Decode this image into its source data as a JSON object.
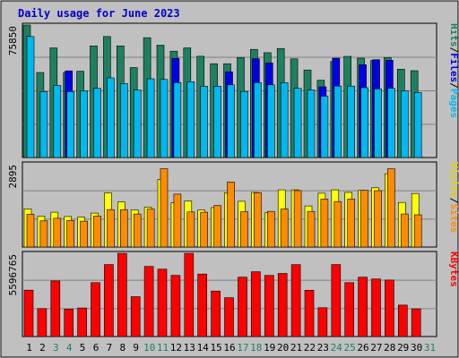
{
  "title": "Daily usage for June 2023",
  "colors": {
    "background": "#c0c0c0",
    "title": "#0000cc",
    "hits": "#1e8060",
    "files": "#0000e6",
    "pages": "#00b8f0",
    "visits": "#ffff00",
    "sites": "#ff8c00",
    "kbytes": "#ff0000",
    "weekday_label": "#000000",
    "weekend_label": "#1e8060"
  },
  "legends": {
    "top": [
      {
        "text": "Hits",
        "color": "#1e8060"
      },
      {
        "text": "/",
        "color": "#000000"
      },
      {
        "text": "Files",
        "color": "#0000e6"
      },
      {
        "text": "/",
        "color": "#000000"
      },
      {
        "text": "Pages",
        "color": "#00b8f0"
      }
    ],
    "middle": [
      {
        "text": "Visits",
        "color": "#e0d000"
      },
      {
        "text": "/",
        "color": "#000000"
      },
      {
        "text": "Sites",
        "color": "#ff8c00"
      }
    ],
    "bottom": [
      {
        "text": "KBytes",
        "color": "#ff0000"
      }
    ]
  },
  "chart_data": [
    {
      "type": "bar",
      "title": "Daily usage for June 2023",
      "panel": "top",
      "ymax_label": "75850",
      "ylim": [
        0,
        75850
      ],
      "grid": true,
      "categories": [
        "1",
        "2",
        "3",
        "4",
        "5",
        "6",
        "7",
        "8",
        "9",
        "10",
        "11",
        "12",
        "13",
        "14",
        "15",
        "16",
        "17",
        "18",
        "19",
        "20",
        "21",
        "22",
        "23",
        "24",
        "25",
        "26",
        "27",
        "28",
        "29",
        "30",
        "31"
      ],
      "weekend_days": [
        "3",
        "4",
        "10",
        "11",
        "17",
        "18",
        "24",
        "25",
        "31"
      ],
      "series": [
        {
          "name": "Hits",
          "color": "#1e8060",
          "values": [
            75850,
            48700,
            62800,
            48700,
            49400,
            63900,
            69300,
            63900,
            51500,
            68600,
            64300,
            60900,
            62800,
            58000,
            53700,
            53700,
            57300,
            61900,
            60000,
            62400,
            56500,
            50100,
            44300,
            55000,
            57900,
            56900,
            55600,
            57300,
            50600,
            49700,
            0
          ]
        },
        {
          "name": "Files",
          "color": "#0000e6",
          "values": [
            0,
            0,
            0,
            49600,
            0,
            0,
            0,
            0,
            0,
            0,
            0,
            56800,
            0,
            0,
            0,
            49100,
            0,
            56600,
            54100,
            0,
            0,
            0,
            40500,
            56900,
            0,
            53100,
            56000,
            55700,
            0,
            0,
            0
          ]
        },
        {
          "name": "Pages",
          "color": "#00b8f0",
          "values": [
            69300,
            37700,
            41200,
            37700,
            38200,
            39600,
            45600,
            42400,
            38600,
            45100,
            44700,
            42900,
            43400,
            40800,
            40800,
            41600,
            37800,
            42900,
            41600,
            42900,
            39600,
            38700,
            35100,
            40900,
            40900,
            40000,
            39300,
            39600,
            38200,
            37200,
            0
          ]
        }
      ]
    },
    {
      "type": "bar",
      "panel": "middle",
      "ymax_label": "2895",
      "ylim": [
        0,
        2895
      ],
      "grid": true,
      "categories": [
        "1",
        "2",
        "3",
        "4",
        "5",
        "6",
        "7",
        "8",
        "9",
        "10",
        "11",
        "12",
        "13",
        "14",
        "15",
        "16",
        "17",
        "18",
        "19",
        "20",
        "21",
        "22",
        "23",
        "24",
        "25",
        "26",
        "27",
        "28",
        "29",
        "30",
        "31"
      ],
      "series": [
        {
          "name": "Visits",
          "color": "#ffff00",
          "values": [
            1330,
            1070,
            1210,
            1060,
            1040,
            1180,
            1880,
            1570,
            1290,
            1390,
            2350,
            1540,
            1600,
            1290,
            1370,
            1890,
            1590,
            1900,
            1190,
            1990,
            1990,
            1430,
            1870,
            1990,
            1900,
            1970,
            2060,
            2550,
            1550,
            1860,
            0
          ]
        },
        {
          "name": "Sites",
          "color": "#ff8c00",
          "values": [
            1140,
            910,
            1000,
            920,
            900,
            1080,
            1300,
            1300,
            1150,
            1320,
            2720,
            1840,
            1220,
            1210,
            1440,
            2260,
            1230,
            1890,
            1240,
            1320,
            1960,
            1240,
            1670,
            1580,
            1670,
            1970,
            1960,
            2720,
            1150,
            1120,
            0
          ]
        }
      ]
    },
    {
      "type": "bar",
      "panel": "bottom",
      "ymax_label": "5596765",
      "ylim": [
        0,
        5596765
      ],
      "grid": true,
      "categories": [
        "1",
        "2",
        "3",
        "4",
        "5",
        "6",
        "7",
        "8",
        "9",
        "10",
        "11",
        "12",
        "13",
        "14",
        "15",
        "16",
        "17",
        "18",
        "19",
        "20",
        "21",
        "22",
        "23",
        "24",
        "25",
        "26",
        "27",
        "28",
        "29",
        "30",
        "31"
      ],
      "series": [
        {
          "name": "KBytes",
          "color": "#ff0000",
          "values": [
            3120000,
            1880000,
            3740000,
            1840000,
            1920000,
            3620000,
            4840000,
            5590000,
            2680000,
            4710000,
            4530000,
            4110000,
            5590000,
            4200000,
            3060000,
            2610000,
            3990000,
            4360000,
            4110000,
            4240000,
            4830000,
            3110000,
            1940000,
            4840000,
            3620000,
            3990000,
            3870000,
            3800000,
            2110000,
            1860000,
            0
          ]
        }
      ]
    }
  ]
}
